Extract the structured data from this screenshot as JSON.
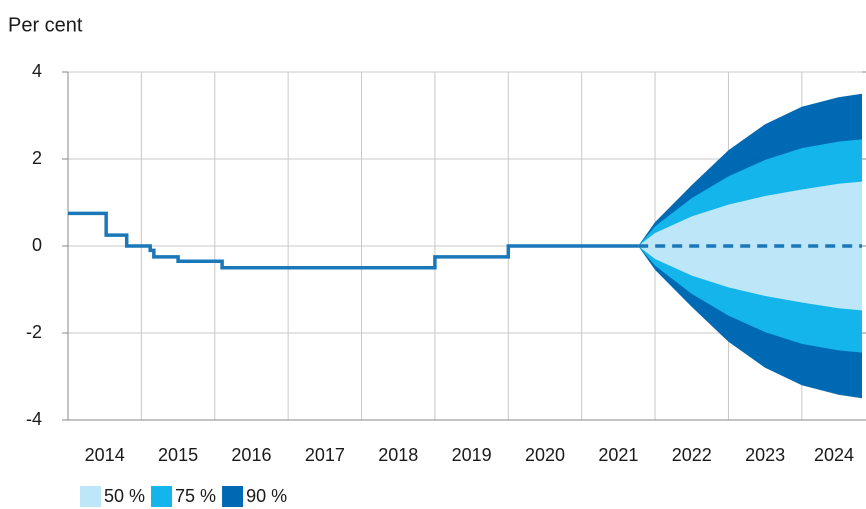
{
  "chart_data": {
    "type": "line",
    "ylabel": "Per cent",
    "xlim": [
      2014.0,
      2024.82
    ],
    "ylim": [
      -4,
      4
    ],
    "yticks": [
      4,
      2,
      0,
      -2,
      -4
    ],
    "xticks": [
      {
        "value": 2014,
        "label": "2014"
      },
      {
        "value": 2015,
        "label": "2015"
      },
      {
        "value": 2016,
        "label": "2016"
      },
      {
        "value": 2017,
        "label": "2017"
      },
      {
        "value": 2018,
        "label": "2018"
      },
      {
        "value": 2019,
        "label": "2019"
      },
      {
        "value": 2020,
        "label": "2020"
      },
      {
        "value": 2021,
        "label": "2021"
      },
      {
        "value": 2022,
        "label": "2022"
      },
      {
        "value": 2023,
        "label": "2023"
      },
      {
        "value": 2024,
        "label": "2024"
      }
    ],
    "grid": true,
    "bands": [
      {
        "name": "90 %",
        "color": "#0069b4",
        "x": [
          2021.77,
          2022.0,
          2022.5,
          2023.0,
          2023.5,
          2024.0,
          2024.5,
          2024.82
        ],
        "upper": [
          0,
          0.55,
          1.4,
          2.2,
          2.8,
          3.2,
          3.42,
          3.5
        ],
        "lower": [
          0,
          -0.55,
          -1.4,
          -2.2,
          -2.8,
          -3.2,
          -3.42,
          -3.5
        ]
      },
      {
        "name": "75 %",
        "color": "#13b5ea",
        "x": [
          2021.77,
          2022.0,
          2022.5,
          2023.0,
          2023.5,
          2024.0,
          2024.5,
          2024.82
        ],
        "upper": [
          0,
          0.45,
          1.1,
          1.6,
          1.98,
          2.25,
          2.4,
          2.45
        ],
        "lower": [
          0,
          -0.45,
          -1.1,
          -1.6,
          -1.98,
          -2.25,
          -2.4,
          -2.45
        ]
      },
      {
        "name": "50 %",
        "color": "#bde6f8",
        "x": [
          2021.77,
          2022.0,
          2022.5,
          2023.0,
          2023.5,
          2024.0,
          2024.5,
          2024.82
        ],
        "upper": [
          0,
          0.3,
          0.68,
          0.95,
          1.15,
          1.3,
          1.43,
          1.48
        ],
        "lower": [
          0,
          -0.3,
          -0.68,
          -0.95,
          -1.15,
          -1.3,
          -1.43,
          -1.48
        ]
      }
    ],
    "series": [
      {
        "color": "#1a78b8",
        "step": "post",
        "dash": false,
        "x": [
          2014.0,
          2014.52,
          2014.8,
          2015.12,
          2015.17,
          2015.5,
          2016.1,
          2019.0,
          2020.0,
          2021.77
        ],
        "values": [
          0.75,
          0.25,
          0,
          -0.1,
          -0.25,
          -0.35,
          -0.5,
          -0.25,
          0,
          0
        ]
      },
      {
        "color": "#1a78b8",
        "step": "post",
        "dash": true,
        "x": [
          2021.77,
          2024.82
        ],
        "values": [
          0,
          0
        ]
      }
    ],
    "legend_order": [
      2,
      1,
      0
    ]
  }
}
